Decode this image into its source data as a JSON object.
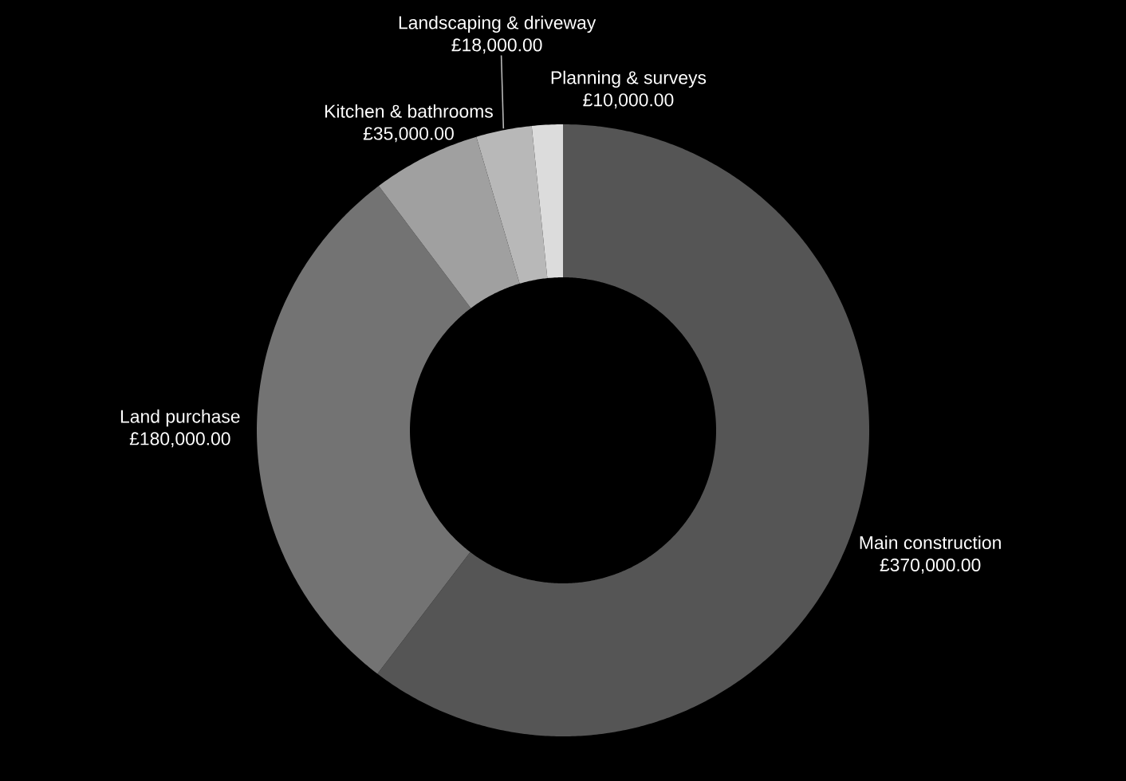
{
  "chart_data": {
    "type": "donut",
    "categories": [
      "Main construction",
      "Land purchase",
      "Kitchen & bathrooms",
      "Landscaping & driveway",
      "Planning & surveys"
    ],
    "values": [
      370000,
      180000,
      35000,
      18000,
      10000
    ],
    "colors": [
      "#555555",
      "#737373",
      "#a0a0a0",
      "#b8b8b8",
      "#dcdcdc"
    ],
    "value_labels": [
      "£370,000.00",
      "£180,000.00",
      "£35,000.00",
      "£18,000.00",
      "£10,000.00"
    ]
  }
}
